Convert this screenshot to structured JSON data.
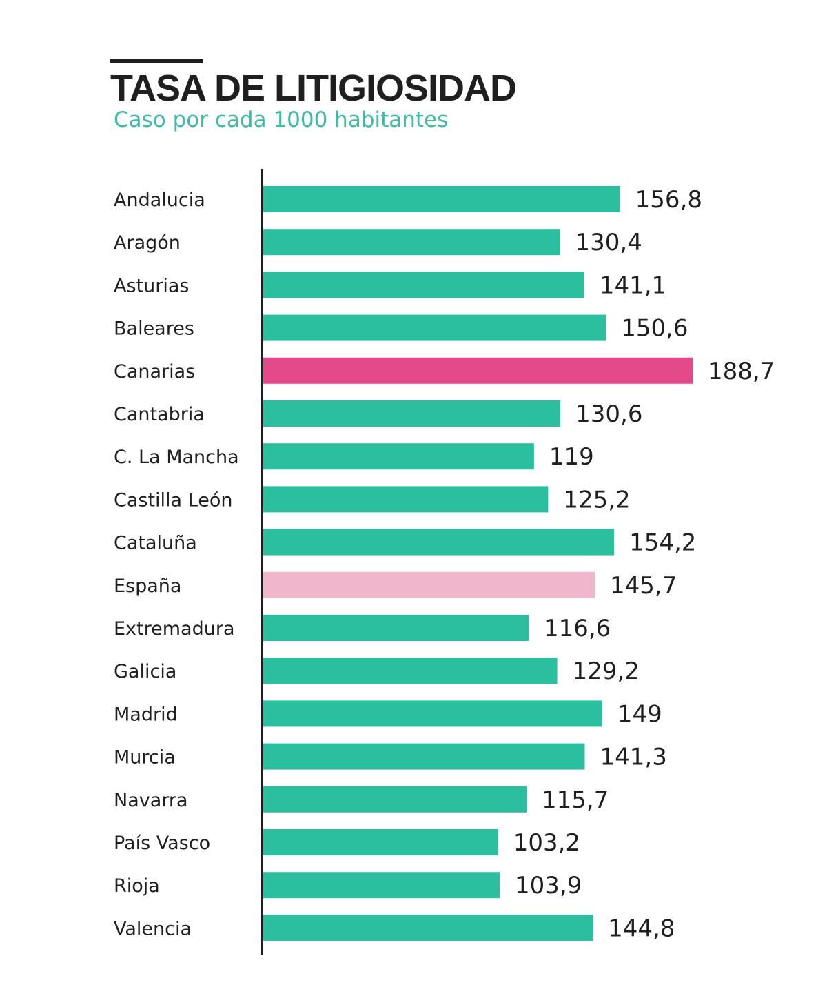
{
  "header": {
    "title": "TASA DE LITIGIOSIDAD",
    "subtitle": "Caso por cada 1000 habitantes"
  },
  "colors": {
    "default_bar": "#2bbfa0",
    "highlight_bar": "#e44a8a",
    "average_bar": "#efb6cc",
    "text": "#1f1f1f",
    "subtitle": "#3dbba6"
  },
  "chart_data": {
    "type": "bar",
    "orientation": "horizontal",
    "title": "TASA DE LITIGIOSIDAD",
    "subtitle": "Caso por cada 1000 habitantes",
    "xlabel": "",
    "ylabel": "",
    "xlim": [
      0,
      188.7
    ],
    "grid": false,
    "legend": "none",
    "categories": [
      "Andalucia",
      "Aragón",
      "Asturias",
      "Baleares",
      "Canarias",
      "Cantabria",
      "C. La Mancha",
      "Castilla León",
      "Cataluña",
      "España",
      "Extremadura",
      "Galicia",
      "Madrid",
      "Murcia",
      "Navarra",
      "País Vasco",
      "Rioja",
      "Valencia"
    ],
    "values": [
      156.8,
      130.4,
      141.1,
      150.6,
      188.7,
      130.6,
      119,
      125.2,
      154.2,
      145.7,
      116.6,
      129.2,
      149,
      141.3,
      115.7,
      103.2,
      103.9,
      144.8
    ],
    "value_labels": [
      "156,8",
      "130,4",
      "141,1",
      "150,6",
      "188,7",
      "130,6",
      "119",
      "125,2",
      "154,2",
      "145,7",
      "116,6",
      "129,2",
      "149",
      "141,3",
      "115,7",
      "103,2",
      "103,9",
      "144,8"
    ],
    "bar_colors": [
      "default",
      "default",
      "default",
      "default",
      "highlight",
      "default",
      "default",
      "default",
      "default",
      "average",
      "default",
      "default",
      "default",
      "default",
      "default",
      "default",
      "default",
      "default"
    ]
  }
}
